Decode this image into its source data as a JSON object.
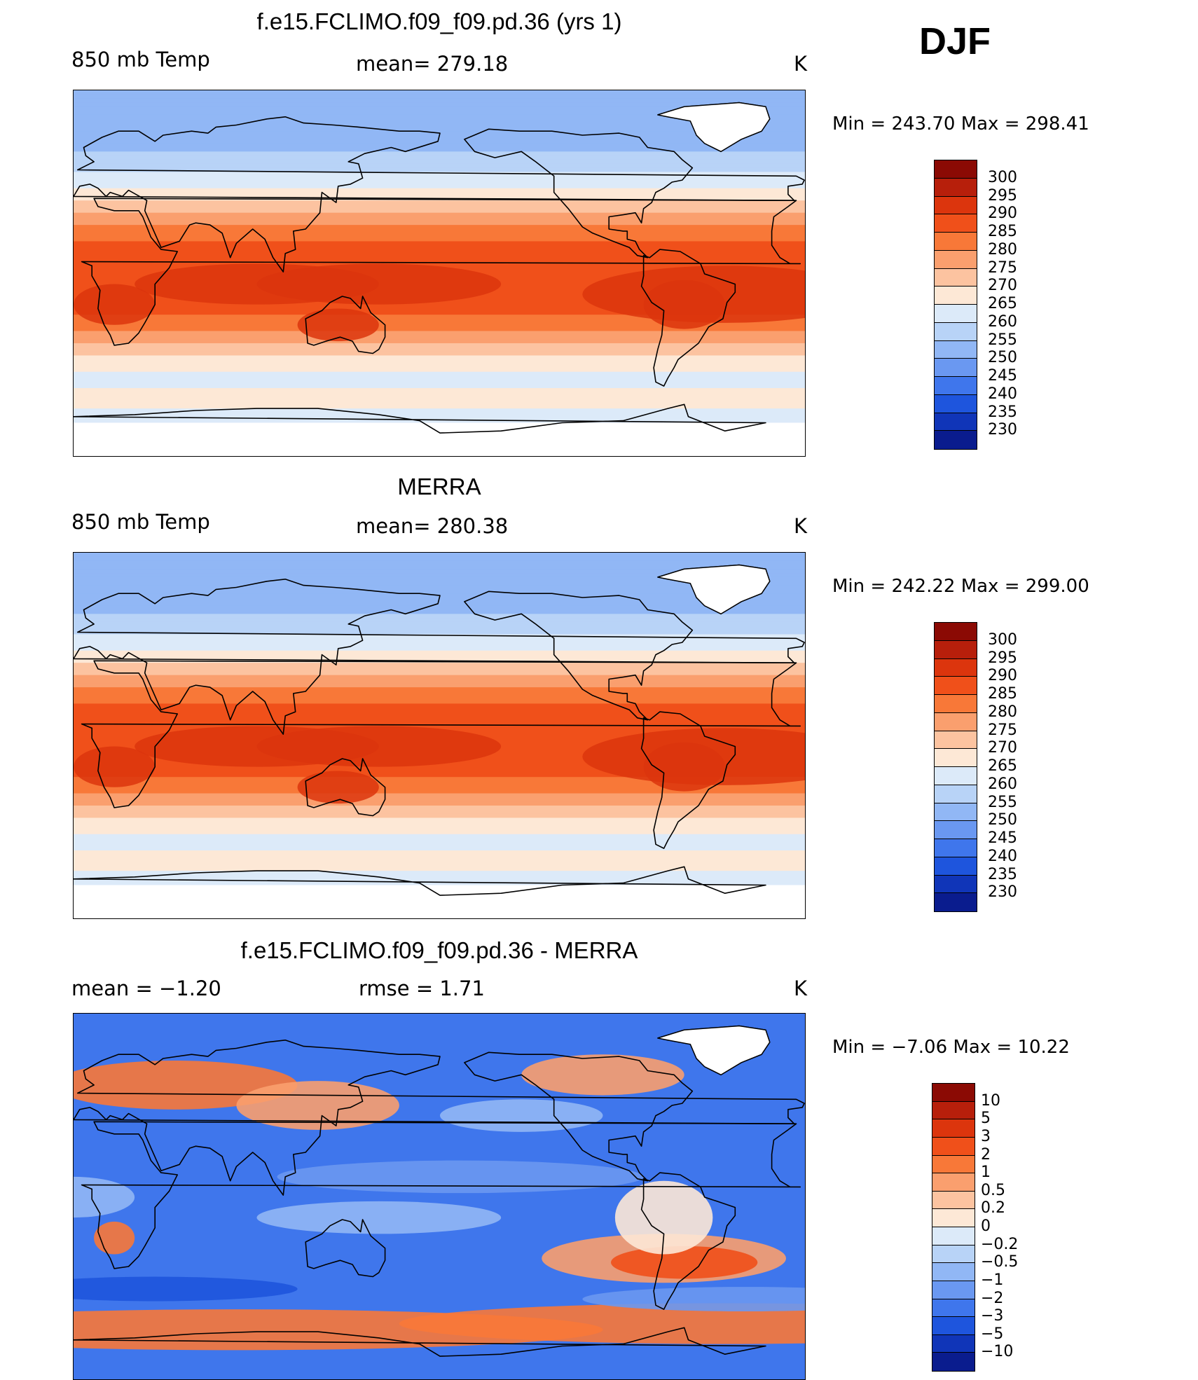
{
  "season": "DJF",
  "panels": [
    {
      "title": "f.e15.FCLIMO.f09_f09.pd.36 (yrs 1)",
      "left_label": "850 mb Temp",
      "stat_label": "mean= 279.18",
      "units": "K",
      "minmax": "Min = 243.70 Max = 298.41",
      "field": "model"
    },
    {
      "title": "MERRA",
      "left_label": "850 mb Temp",
      "stat_label": "mean= 280.38",
      "units": "K",
      "minmax": "Min = 242.22 Max = 299.00",
      "field": "obs"
    },
    {
      "title": "f.e15.FCLIMO.f09_f09.pd.36 - MERRA",
      "left_label": "mean =   −1.20",
      "stat_label": "rmse =    1.71",
      "units": "K",
      "minmax": "Min =   −7.06 Max =   10.22",
      "field": "diff"
    }
  ],
  "colorbars": {
    "temperature": {
      "labels": [
        "300",
        "295",
        "290",
        "285",
        "280",
        "275",
        "270",
        "265",
        "260",
        "255",
        "250",
        "245",
        "240",
        "235",
        "230"
      ],
      "colors": [
        "#8b0a04",
        "#b71f0b",
        "#dc350d",
        "#f0501a",
        "#f87838",
        "#fa9f6e",
        "#fcc3a0",
        "#fde8d6",
        "#dceaf9",
        "#b8d3f7",
        "#91b7f5",
        "#6a98f1",
        "#3f76ec",
        "#1e55dd",
        "#1035b8",
        "#0a1c8e"
      ]
    },
    "difference": {
      "labels": [
        "10",
        "5",
        "3",
        "2",
        "1",
        "0.5",
        "0.2",
        "0",
        "−0.2",
        "−0.5",
        "−1",
        "−2",
        "−3",
        "−5",
        "−10"
      ],
      "colors": [
        "#8b0a04",
        "#b71f0b",
        "#dc350d",
        "#f0501a",
        "#f87838",
        "#fa9f6e",
        "#fcc3a0",
        "#fde8d6",
        "#dceaf9",
        "#b8d3f7",
        "#91b7f5",
        "#6a98f1",
        "#3f76ec",
        "#1e55dd",
        "#1035b8",
        "#0a1c8e"
      ]
    }
  }
}
